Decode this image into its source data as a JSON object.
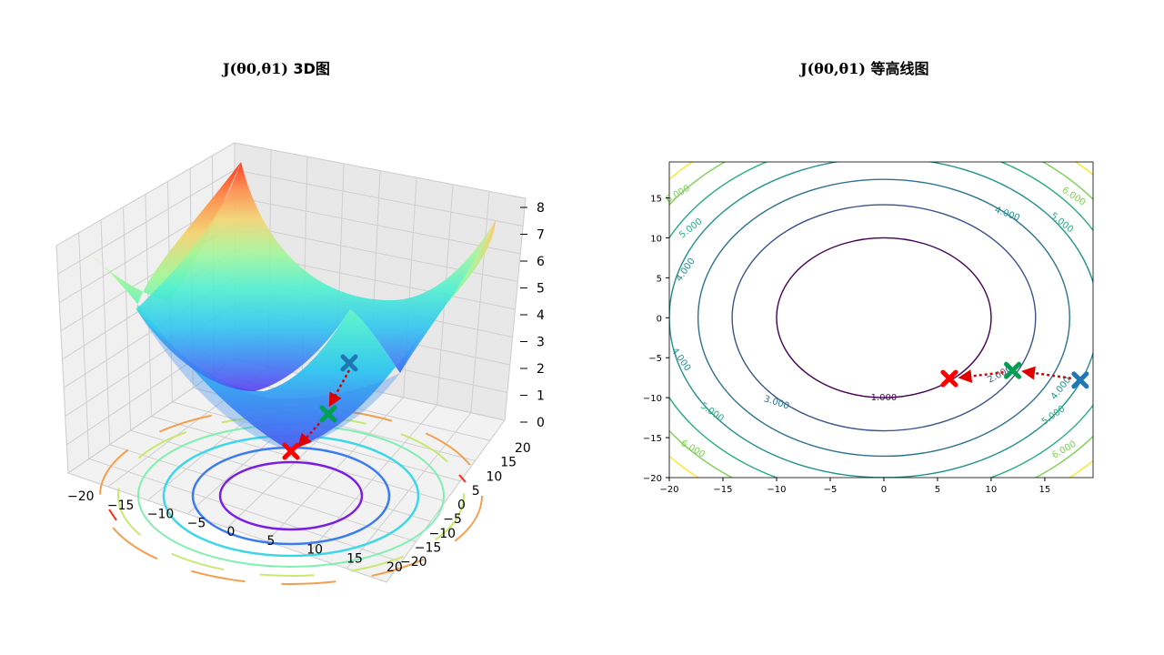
{
  "titles": {
    "left": "J(θ0,θ1)",
    "left_suffix": "3D图",
    "right": "J(θ0,θ1)",
    "right_suffix": "等高线图"
  },
  "chart_data": [
    {
      "type": "surface3d",
      "title": "J(θ0,θ1) 3D图",
      "colormap": "rainbow",
      "x_ticks": [
        "−20",
        "−15",
        "−10",
        "−5",
        "0",
        "5",
        "10",
        "15",
        "20"
      ],
      "y_ticks": [
        "−20",
        "−15",
        "−10",
        "−5",
        "0",
        "5",
        "10",
        "15",
        "20"
      ],
      "z_ticks": [
        "0",
        "1",
        "2",
        "3",
        "4",
        "5",
        "6",
        "7",
        "8"
      ],
      "zlim": [
        0,
        8
      ],
      "markers": [
        {
          "name": "start",
          "color": "#1f77b4",
          "x": 18,
          "y": -8,
          "z": 2.3
        },
        {
          "name": "step",
          "color": "#00a050",
          "x": 12,
          "y": -6.5,
          "z": 1.0
        },
        {
          "name": "end",
          "color": "#ff0000",
          "x": 6,
          "y": -7.5,
          "z": 0.4
        }
      ],
      "grid": true
    },
    {
      "type": "contour",
      "title": "J(θ0,θ1) 等高线图",
      "xlim": [
        -20,
        20
      ],
      "ylim": [
        -20,
        20
      ],
      "x_ticks": [
        "−20",
        "−15",
        "−10",
        "−5",
        "0",
        "5",
        "10",
        "15"
      ],
      "y_ticks": [
        "−20",
        "−15",
        "−10",
        "−5",
        "0",
        "5",
        "10",
        "15"
      ],
      "levels": [
        {
          "label": "1.000",
          "color": "#440154"
        },
        {
          "label": "2.000",
          "color": "#3b528b"
        },
        {
          "label": "3.000",
          "color": "#2c728e"
        },
        {
          "label": "4.000",
          "color": "#21918c"
        },
        {
          "label": "5.000",
          "color": "#27ad81"
        },
        {
          "label": "6.000",
          "color": "#7ad151"
        },
        {
          "label": "7.000",
          "color": "#fde725"
        }
      ],
      "markers": [
        {
          "name": "start",
          "color": "#1f77b4",
          "x": 18.3,
          "y": -7.8
        },
        {
          "name": "step",
          "color": "#00a050",
          "x": 12.0,
          "y": -6.6
        },
        {
          "name": "end",
          "color": "#ff0000",
          "x": 6.1,
          "y": -7.6
        }
      ]
    }
  ]
}
